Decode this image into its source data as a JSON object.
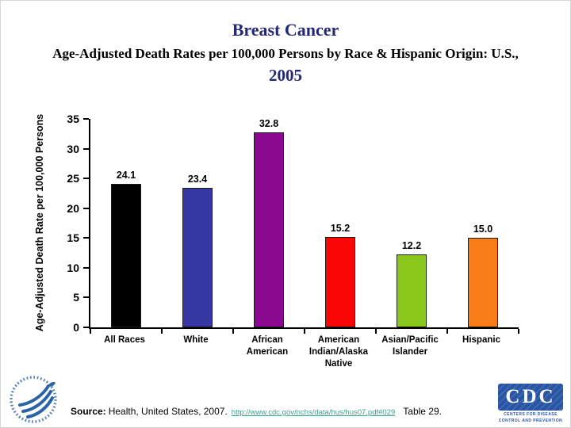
{
  "slide_title": {
    "line1": "Breast Cancer",
    "line2": "Age-Adjusted Death Rates per 100,000 Persons by Race & Hispanic Origin: U.S.,",
    "line3": "2005"
  },
  "theme": {
    "title_color": "#242878",
    "text_color": "#000000",
    "axis_color": "#000000",
    "link_color": "#3A9F8D",
    "cdc_blue": "#2856A5",
    "hhs_blue": "#2B62A8",
    "background": "#FFFFFF"
  },
  "chart_data": {
    "type": "bar",
    "title": "Breast Cancer — Age-Adjusted Death Rates per 100,000 Persons by Race & Hispanic Origin: U.S., 2005",
    "categories": [
      "All Races",
      "White",
      "African American",
      "American Indian/Alaska Native",
      "Asian/Pacific Islander",
      "Hispanic"
    ],
    "category_lines": [
      [
        "All Races"
      ],
      [
        "White"
      ],
      [
        "African",
        "American"
      ],
      [
        "American",
        "Indian/Alaska",
        "Native"
      ],
      [
        "Asian/Pacific",
        "Islander"
      ],
      [
        "Hispanic"
      ]
    ],
    "values": [
      24.1,
      23.4,
      32.8,
      15.2,
      12.2,
      15.0
    ],
    "value_labels": [
      "24.1",
      "23.4",
      "32.8",
      "15.2",
      "12.2",
      "15.0"
    ],
    "bar_colors": [
      "#000000",
      "#3737A4",
      "#8B0890",
      "#FB0607",
      "#8BC81E",
      "#F97D16"
    ],
    "xlabel": "",
    "ylabel": "Age-Adjusted Death Rate per 100,000 Persons",
    "ylim": [
      0,
      35
    ],
    "yticks": [
      0,
      5,
      10,
      15,
      20,
      25,
      30,
      35
    ],
    "grid": false,
    "legend": "none"
  },
  "footer": {
    "source_label": "Source:",
    "source_text": "Health, United States, 2007.",
    "source_url": "http://www.cdc.gov/nchs/data/hus/hus07.pdf#029",
    "source_suffix": "Table 29."
  },
  "logos": {
    "hhs_name": "hhs-eagle-logo",
    "cdc_text": "CDC",
    "cdc_caption_line1": "CENTERS FOR DISEASE",
    "cdc_caption_line2": "CONTROL AND PREVENTION"
  }
}
